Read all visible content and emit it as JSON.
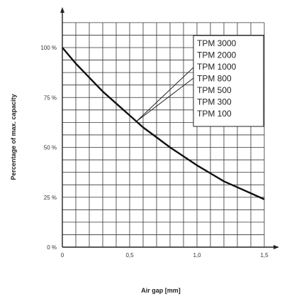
{
  "chart_data": {
    "type": "line",
    "title": "",
    "xlabel": "Air gap [mm]",
    "ylabel": "Percentage of max. capacity",
    "xlim": [
      0,
      1.5
    ],
    "ylim": [
      0,
      100
    ],
    "x_ticks": [
      {
        "value": 0,
        "label": "0"
      },
      {
        "value": 0.5,
        "label": "0,5"
      },
      {
        "value": 1.0,
        "label": "1,0"
      },
      {
        "value": 1.5,
        "label": "1,5"
      }
    ],
    "y_ticks": [
      {
        "value": 0,
        "label": "0 %"
      },
      {
        "value": 25,
        "label": "25 %"
      },
      {
        "value": 50,
        "label": "50 %"
      },
      {
        "value": 75,
        "label": "75 %"
      },
      {
        "value": 100,
        "label": "100 %"
      }
    ],
    "grid": true,
    "legend": {
      "placement": "top-right",
      "entries": [
        "TPM 3000",
        "TPM 2000",
        "TPM 1000",
        "TPM 800",
        "TPM 500",
        "TPM 300",
        "TPM 100"
      ]
    },
    "series": [
      {
        "x": [
          0,
          0.1,
          0.2,
          0.3,
          0.4,
          0.5,
          0.6,
          0.7,
          0.8,
          0.9,
          1.0,
          1.1,
          1.2,
          1.3,
          1.4,
          1.5
        ],
        "values": [
          100,
          92,
          85,
          78,
          72,
          66,
          60,
          55,
          50,
          45.5,
          41,
          37,
          33,
          30,
          27,
          24
        ]
      }
    ],
    "annotation_point": {
      "x": 0.55,
      "y": 63
    },
    "colors": {
      "line": "#111111",
      "grid": "#333333",
      "axis": "#222222"
    }
  }
}
